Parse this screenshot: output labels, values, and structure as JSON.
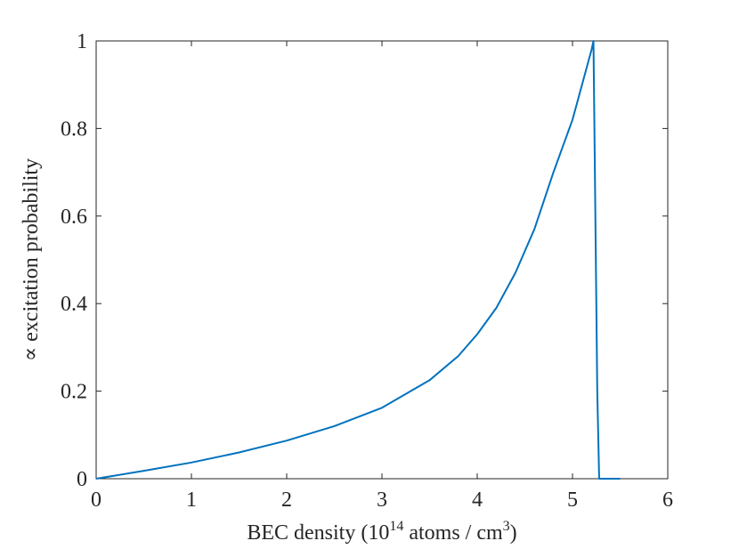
{
  "chart_data": {
    "type": "line",
    "title": "",
    "xlabel": {
      "prefix": "BEC density (10",
      "exponent": "14",
      "middle": " atoms / cm",
      "exponent2": "3",
      "suffix": ")"
    },
    "ylabel": "∝ excitation probability",
    "xlim": [
      0,
      6
    ],
    "ylim": [
      0,
      1
    ],
    "xticks": [
      "0",
      "1",
      "2",
      "3",
      "4",
      "5",
      "6"
    ],
    "yticks": [
      "0",
      "0.2",
      "0.4",
      "0.6",
      "0.8",
      "1"
    ],
    "grid": false,
    "legend": "none",
    "series": [
      {
        "color": "#0072BD",
        "x": [
          0,
          0.5,
          1.0,
          1.5,
          2.0,
          2.5,
          3.0,
          3.5,
          3.8,
          4.0,
          4.2,
          4.4,
          4.6,
          4.8,
          5.0,
          5.1,
          5.2,
          5.22,
          5.24,
          5.26,
          5.28,
          5.3,
          5.5
        ],
        "y": [
          0,
          0.018,
          0.037,
          0.06,
          0.087,
          0.12,
          0.162,
          0.225,
          0.28,
          0.33,
          0.39,
          0.47,
          0.57,
          0.7,
          0.82,
          0.9,
          0.98,
          1.0,
          0.6,
          0.2,
          0.0,
          0.0,
          0.0
        ]
      }
    ]
  }
}
